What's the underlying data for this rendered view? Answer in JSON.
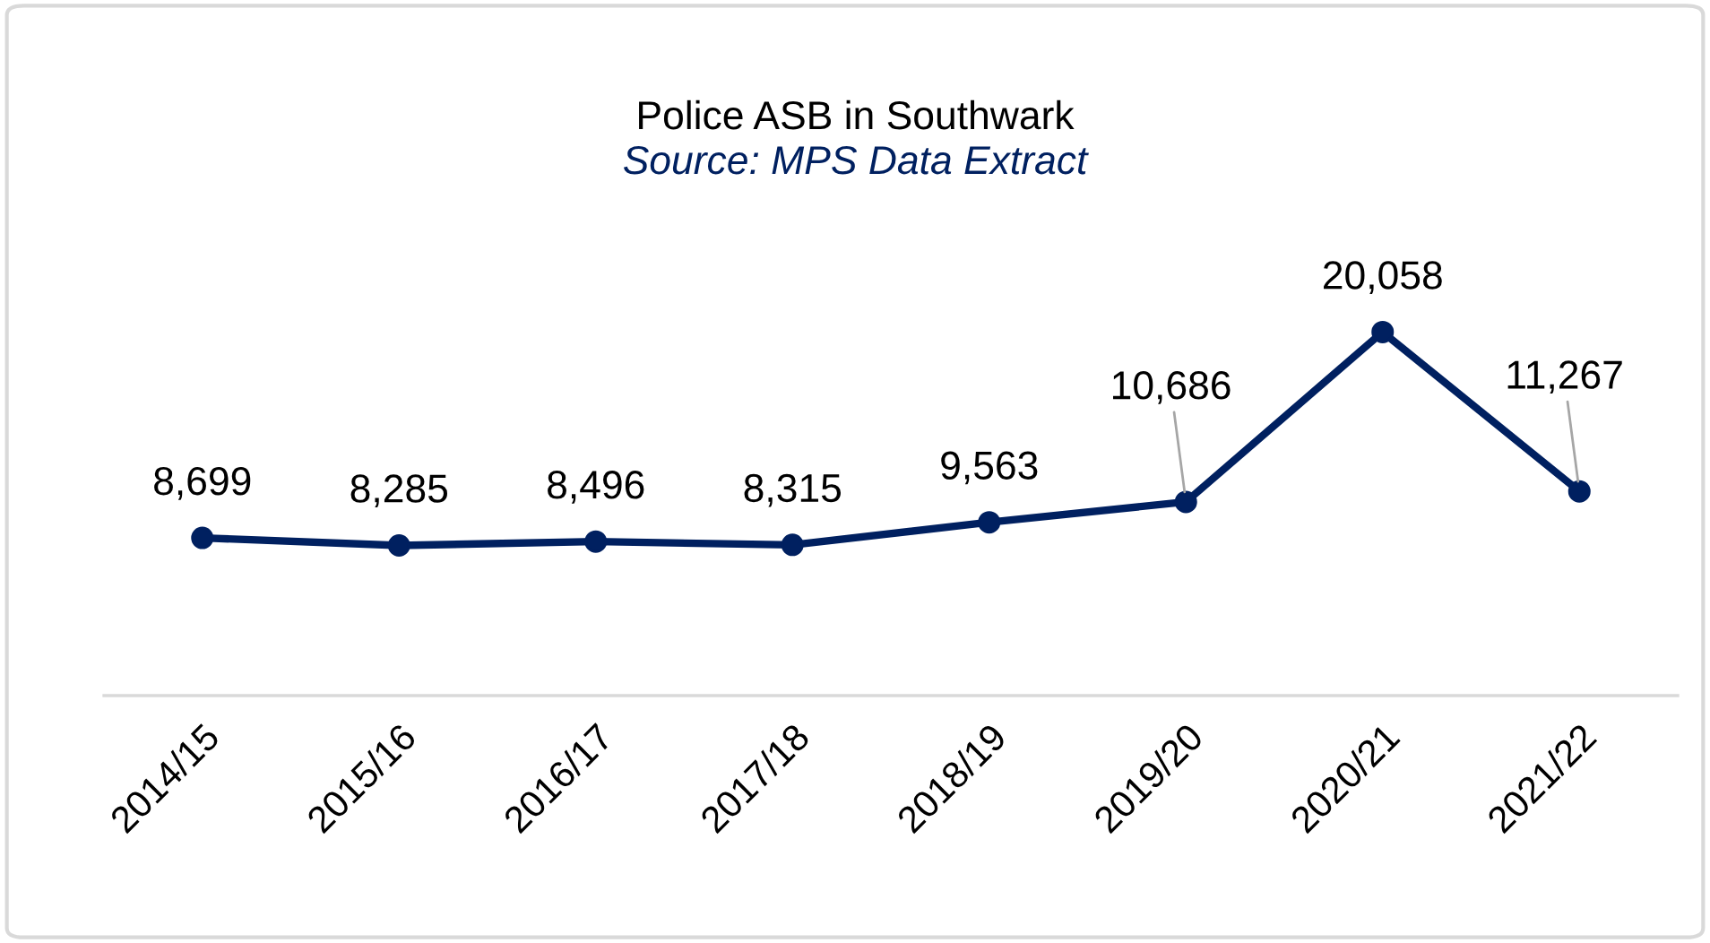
{
  "chart_data": {
    "type": "line",
    "title": "Police ASB in Southwark",
    "subtitle": "Source: MPS Data Extract",
    "categories": [
      "2014/15",
      "2015/16",
      "2016/17",
      "2017/18",
      "2018/19",
      "2019/20",
      "2020/21",
      "2021/22"
    ],
    "values": [
      8699,
      8285,
      8496,
      8315,
      9563,
      10686,
      20058,
      11267
    ],
    "value_labels": [
      "8,699",
      "8,285",
      "8,496",
      "8,315",
      "9,563",
      "10,686",
      "20,058",
      "11,267"
    ],
    "color": "#002060",
    "marker": "circle",
    "line_style": "solid"
  }
}
